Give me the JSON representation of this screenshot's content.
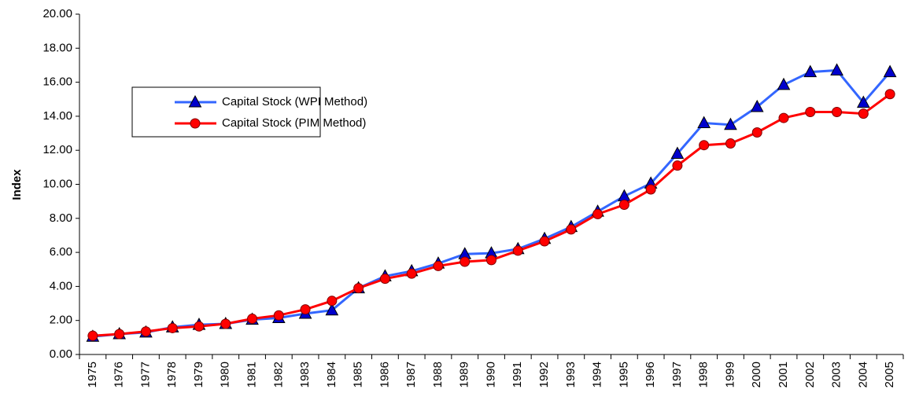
{
  "chart_data": {
    "type": "line",
    "y_label": "Index",
    "categories": [
      "1975",
      "1976",
      "1977",
      "1978",
      "1979",
      "1980",
      "1981",
      "1982",
      "1983",
      "1984",
      "1985",
      "1986",
      "1987",
      "1988",
      "1989",
      "1990",
      "1991",
      "1992",
      "1993",
      "1994",
      "1995",
      "1996",
      "1997",
      "1998",
      "1999",
      "2000",
      "2001",
      "2002",
      "2003",
      "2004",
      "2005"
    ],
    "series": [
      {
        "name": "Capital Stock (WPI Method)",
        "color": "#3366ff",
        "marker": "triangle",
        "marker_color": "#0000cc",
        "values": [
          1.05,
          1.2,
          1.3,
          1.6,
          1.75,
          1.8,
          2.05,
          2.15,
          2.4,
          2.6,
          3.9,
          4.6,
          4.9,
          5.35,
          5.9,
          5.95,
          6.2,
          6.8,
          7.5,
          8.4,
          9.3,
          10.05,
          11.8,
          13.6,
          13.5,
          14.55,
          15.85,
          16.6,
          16.7,
          14.8,
          16.6
        ]
      },
      {
        "name": "Capital Stock (PIM Method)",
        "color": "#ff0000",
        "marker": "circle",
        "marker_color": "#ff0000",
        "values": [
          1.1,
          1.2,
          1.35,
          1.55,
          1.65,
          1.8,
          2.1,
          2.3,
          2.65,
          3.15,
          3.9,
          4.45,
          4.75,
          5.2,
          5.45,
          5.55,
          6.1,
          6.65,
          7.35,
          8.25,
          8.8,
          9.7,
          11.1,
          12.3,
          12.4,
          13.05,
          13.9,
          14.25,
          14.25,
          14.15,
          15.3
        ]
      }
    ],
    "ylim": [
      0,
      20
    ],
    "yticks": [
      {
        "value": 0,
        "label": "0.00"
      },
      {
        "value": 2,
        "label": "2.00"
      },
      {
        "value": 4,
        "label": "4.00"
      },
      {
        "value": 6,
        "label": "6.00"
      },
      {
        "value": 8,
        "label": "8.00"
      },
      {
        "value": 10,
        "label": "10.00"
      },
      {
        "value": 12,
        "label": "12.00"
      },
      {
        "value": 14,
        "label": "14.00"
      },
      {
        "value": 16,
        "label": "16.00"
      },
      {
        "value": 18,
        "label": "18.00"
      },
      {
        "value": 20,
        "label": "20.00"
      }
    ],
    "grid": false
  }
}
